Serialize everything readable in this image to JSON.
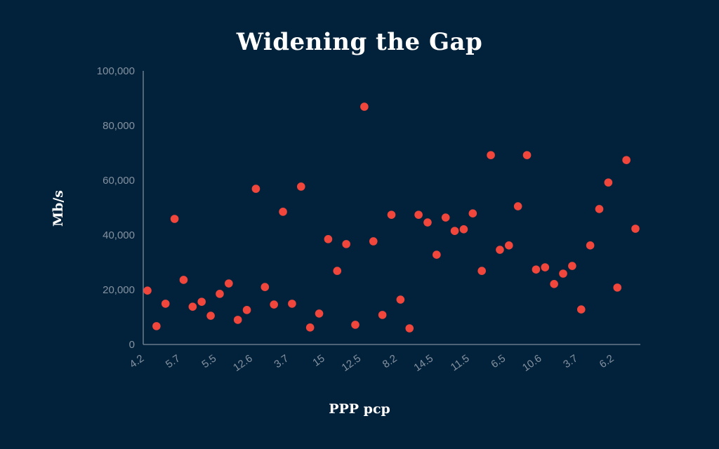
{
  "chart_data": {
    "type": "scatter",
    "title": "Widening the Gap",
    "xlabel": "PPP pcp",
    "ylabel": "Mb/s",
    "ylim": [
      0,
      100000
    ],
    "yticks": [
      0,
      20000,
      40000,
      60000,
      80000,
      100000
    ],
    "ytick_labels": [
      "0",
      "20,000",
      "40,000",
      "60,000",
      "80,000",
      "100,000"
    ],
    "x_tick_labels": [
      "4.2",
      "5.7",
      "5.5",
      "12.6",
      "3.7",
      "15",
      "12.5",
      "8.2",
      "14.5",
      "11.5",
      "6.5",
      "10.6",
      "3.7",
      "6.2"
    ],
    "x_tick_every": 4,
    "grid": false,
    "marker_color": "#f0463c",
    "background_color": "#02223b",
    "values": [
      19700,
      6700,
      14900,
      45900,
      23600,
      13800,
      15600,
      10500,
      18500,
      22300,
      9000,
      12600,
      56900,
      21000,
      14600,
      48500,
      14900,
      57700,
      6200,
      11300,
      38500,
      26900,
      36700,
      7200,
      86900,
      37700,
      10800,
      47400,
      16400,
      5900,
      47400,
      44600,
      32800,
      46400,
      41500,
      42100,
      47900,
      26900,
      69200,
      34600,
      36200,
      50500,
      69200,
      27400,
      28200,
      22100,
      25900,
      28700,
      12800,
      36200,
      49500,
      59200,
      20800,
      67400,
      42300
    ]
  }
}
